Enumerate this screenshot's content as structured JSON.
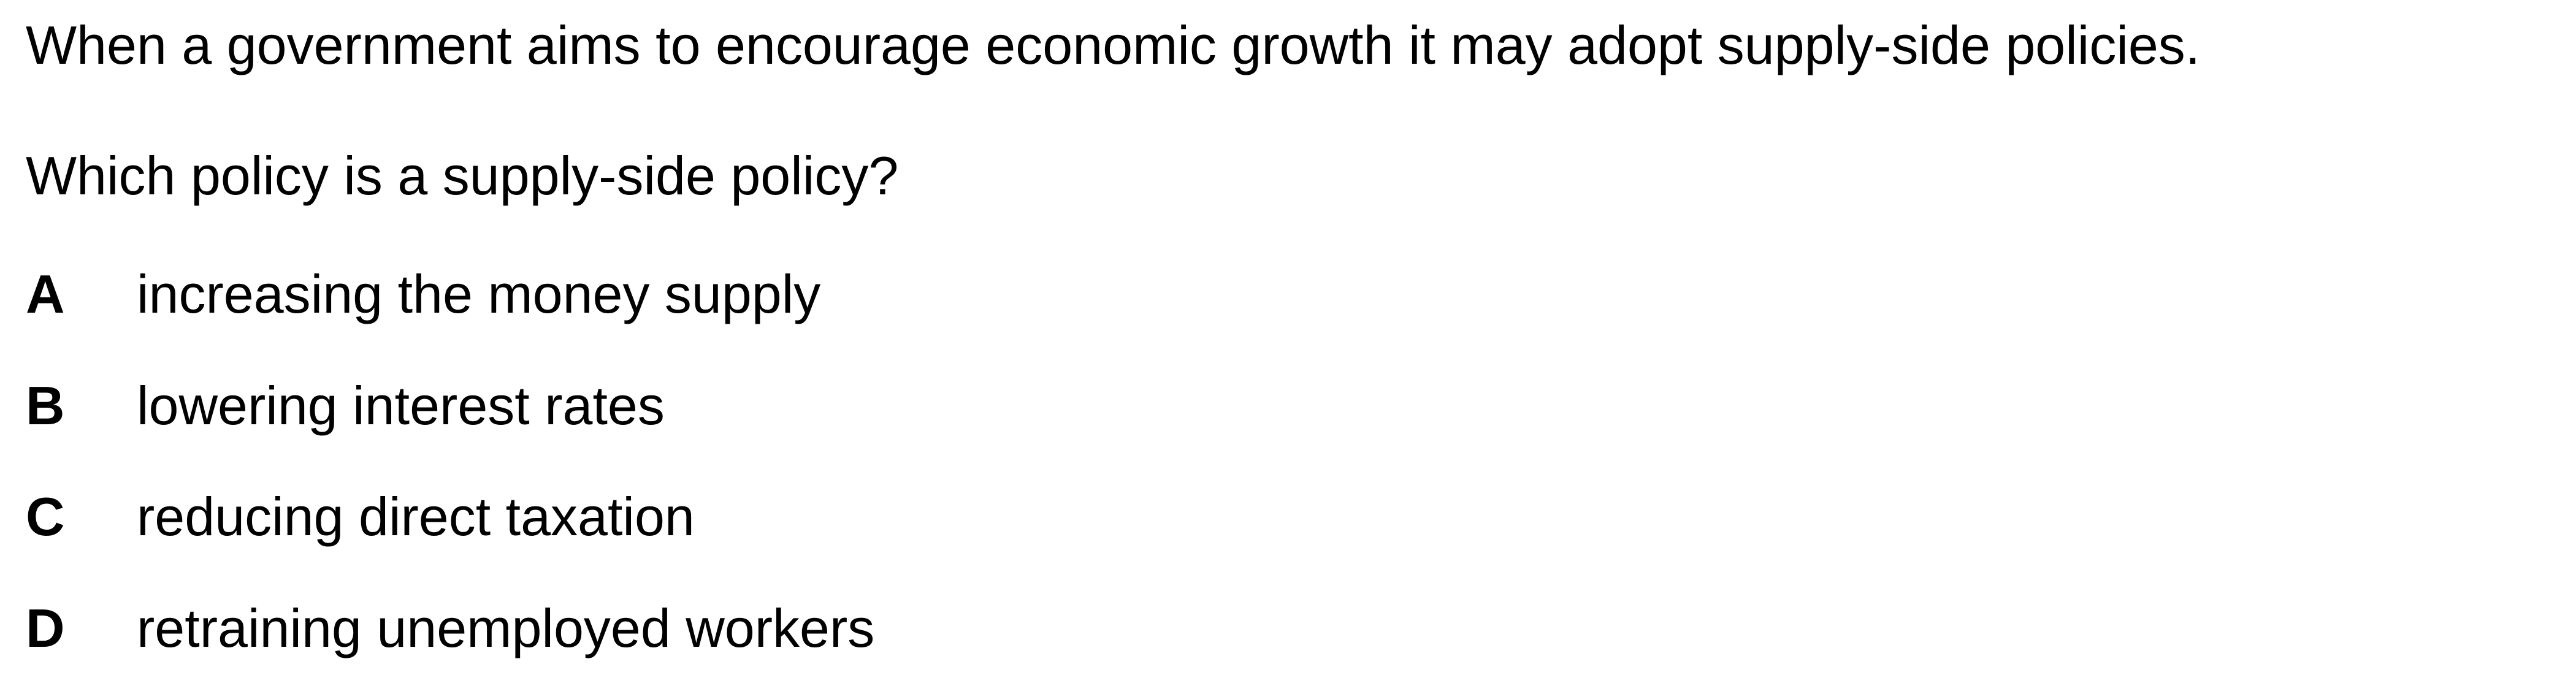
{
  "question": {
    "intro": "When a government aims to encourage economic growth it may adopt supply-side policies.",
    "prompt": "Which policy is a supply-side policy?",
    "options": [
      {
        "letter": "A",
        "text": "increasing the money supply"
      },
      {
        "letter": "B",
        "text": "lowering interest rates"
      },
      {
        "letter": "C",
        "text": "reducing direct taxation"
      },
      {
        "letter": "D",
        "text": "retraining unemployed workers"
      }
    ]
  }
}
